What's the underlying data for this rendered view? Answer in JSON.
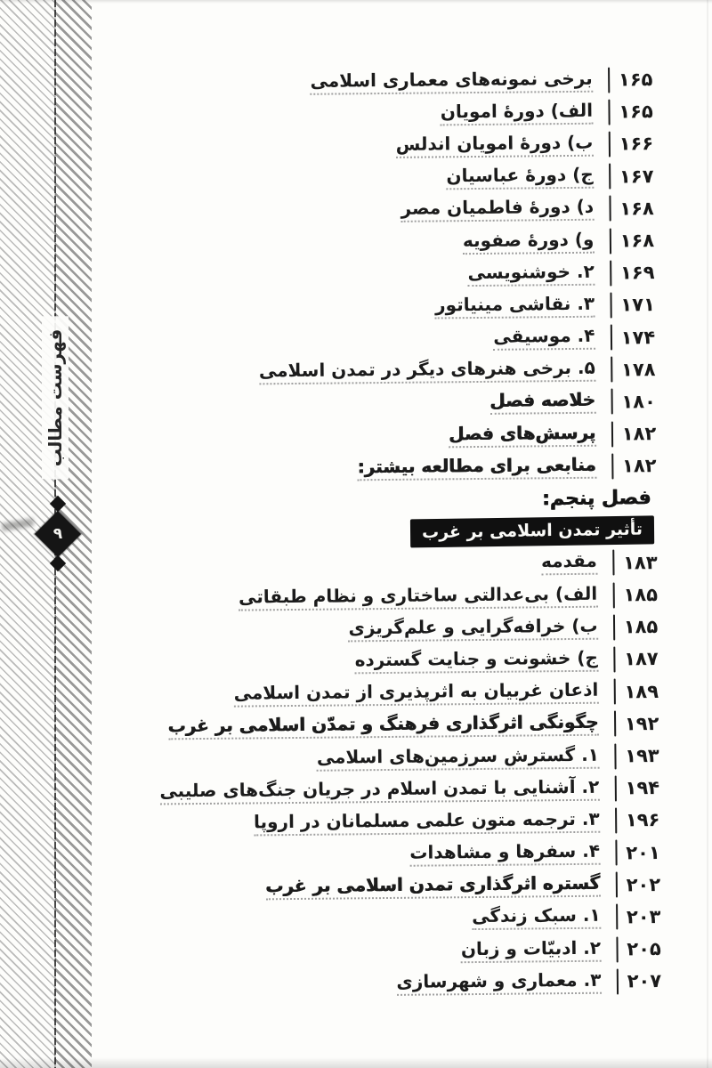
{
  "page": {
    "background_color": "#fdfdfb",
    "ink_color": "#1b1b1b",
    "banner_bg_color": "#101010",
    "banner_text_color": "#fbfbf8"
  },
  "sidebar": {
    "label": "فهرست مطالب",
    "ornament_number": "۹"
  },
  "toc": {
    "rows": [
      {
        "type": "entry",
        "page": "۱۶۵",
        "title": "برخی نمونه‌های معماری اسلامی",
        "bold": false
      },
      {
        "type": "entry",
        "page": "۱۶۵",
        "title": "الف) دورهٔ امویان",
        "bold": false
      },
      {
        "type": "entry",
        "page": "۱۶۶",
        "title": "ب) دورهٔ امویان اندلس",
        "bold": false
      },
      {
        "type": "entry",
        "page": "۱۶۷",
        "title": "ج) دورهٔ عباسیان",
        "bold": false
      },
      {
        "type": "entry",
        "page": "۱۶۸",
        "title": "د) دورهٔ فاطمیان مصر",
        "bold": false
      },
      {
        "type": "entry",
        "page": "۱۶۸",
        "title": "و) دورهٔ صفویه",
        "bold": false
      },
      {
        "type": "entry",
        "page": "۱۶۹",
        "title": "۲. خوشنویسی",
        "bold": false
      },
      {
        "type": "entry",
        "page": "۱۷۱",
        "title": "۳. نقاشی مینیاتور",
        "bold": false
      },
      {
        "type": "entry",
        "page": "۱۷۴",
        "title": "۴. موسیقی",
        "bold": false
      },
      {
        "type": "entry",
        "page": "۱۷۸",
        "title": "۵. برخی هنرهای دیگر در تمدن اسلامی",
        "bold": false
      },
      {
        "type": "entry",
        "page": "۱۸۰",
        "title": "خلاصه فصل",
        "bold": true
      },
      {
        "type": "entry",
        "page": "۱۸۲",
        "title": "پرسش‌های فصل",
        "bold": true
      },
      {
        "type": "entry",
        "page": "۱۸۲",
        "title": "منابعی برای مطالعه بیشتر:",
        "bold": true
      },
      {
        "type": "header",
        "title": "فصل پنجم:"
      },
      {
        "type": "banner",
        "title": "تأثیر تمدن اسلامی بر غرب"
      },
      {
        "type": "entry",
        "page": "۱۸۳",
        "title": "مقدمه",
        "bold": false
      },
      {
        "type": "entry",
        "page": "۱۸۵",
        "title": "الف) بی‌عدالتی ساختاری و نظام طبقاتی",
        "bold": false
      },
      {
        "type": "entry",
        "page": "۱۸۵",
        "title": "ب) خرافه‌گرایی و علم‌گریزی",
        "bold": false
      },
      {
        "type": "entry",
        "page": "۱۸۷",
        "title": "ج) خشونت و جنایت گسترده",
        "bold": false
      },
      {
        "type": "entry",
        "page": "۱۸۹",
        "title": "اذعان غربیان به اثرپذیری از تمدن اسلامی",
        "bold": false
      },
      {
        "type": "entry",
        "page": "۱۹۲",
        "title": "چگونگی اثرگذاری فرهنگ و تمدّن اسلامی بر غرب",
        "bold": true
      },
      {
        "type": "entry",
        "page": "۱۹۳",
        "title": "۱. گسترش سرزمین‌های اسلامی",
        "bold": false
      },
      {
        "type": "entry",
        "page": "۱۹۴",
        "title": "۲. آشنایی با تمدن اسلام در جریان جنگ‌های صلیبی",
        "bold": false
      },
      {
        "type": "entry",
        "page": "۱۹۶",
        "title": "۳. ترجمه متون علمی مسلمانان در اروپا",
        "bold": false
      },
      {
        "type": "entry",
        "page": "۲۰۱",
        "title": "۴. سفرها و مشاهدات",
        "bold": false
      },
      {
        "type": "entry",
        "page": "۲۰۲",
        "title": "گستره اثرگذاری تمدن اسلامی بر غرب",
        "bold": true
      },
      {
        "type": "entry",
        "page": "۲۰۳",
        "title": "۱. سبک زندگی",
        "bold": false
      },
      {
        "type": "entry",
        "page": "۲۰۵",
        "title": "۲. ادبیّات و زبان",
        "bold": false
      },
      {
        "type": "entry",
        "page": "۲۰۷",
        "title": "۳. معماری و شهرسازی",
        "bold": false
      }
    ]
  }
}
